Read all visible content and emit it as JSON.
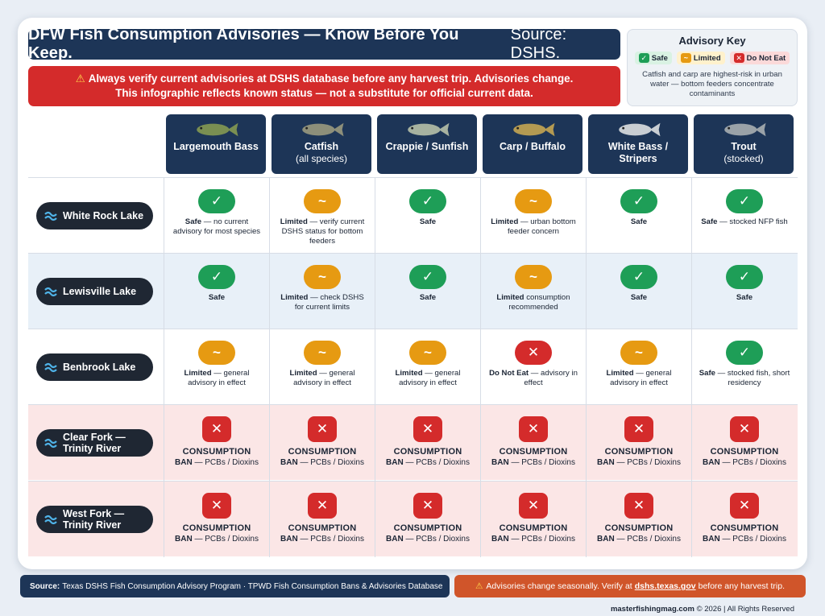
{
  "title": {
    "main": "DFW Fish Consumption Advisories — Know Before You Keep.",
    "source": "Source: DSHS."
  },
  "warning": {
    "line1": "Always verify current advisories at DSHS database before any harvest trip. Advisories change.",
    "line2": "This infographic reflects known status — not a substitute for official current data."
  },
  "key": {
    "title": "Advisory Key",
    "safe": "Safe",
    "limited": "Limited",
    "do_not_eat": "Do Not Eat",
    "note": "Catfish and carp are highest-risk in urban water — bottom feeders concentrate contaminants"
  },
  "species": [
    {
      "name": "Largemouth Bass",
      "sub": ""
    },
    {
      "name": "Catfish",
      "sub": "(all species)"
    },
    {
      "name": "Crappie / Sunfish",
      "sub": ""
    },
    {
      "name": "Carp / Buffalo",
      "sub": ""
    },
    {
      "name": "White Bass / Stripers",
      "sub": ""
    },
    {
      "name": "Trout",
      "sub": "(stocked)"
    }
  ],
  "lakes": [
    {
      "name": "White Rock Lake",
      "cells": [
        {
          "status": "safe",
          "label": "Safe",
          "detail": " — no current advisory for most species"
        },
        {
          "status": "limited",
          "label": "Limited",
          "detail": " — verify current DSHS status for bottom feeders"
        },
        {
          "status": "safe",
          "label": "Safe",
          "detail": ""
        },
        {
          "status": "limited",
          "label": "Limited",
          "detail": " — urban bottom feeder concern"
        },
        {
          "status": "safe",
          "label": "Safe",
          "detail": ""
        },
        {
          "status": "safe",
          "label": "Safe",
          "detail": " — stocked NFP fish"
        }
      ]
    },
    {
      "name": "Lewisville Lake",
      "cells": [
        {
          "status": "safe",
          "label": "Safe",
          "detail": ""
        },
        {
          "status": "limited",
          "label": "Limited",
          "detail": " — check DSHS for current limits"
        },
        {
          "status": "safe",
          "label": "Safe",
          "detail": ""
        },
        {
          "status": "limited",
          "label": "Limited",
          "detail": " consumption recommended"
        },
        {
          "status": "safe",
          "label": "Safe",
          "detail": ""
        },
        {
          "status": "safe",
          "label": "Safe",
          "detail": ""
        }
      ]
    },
    {
      "name": "Benbrook Lake",
      "cells": [
        {
          "status": "limited",
          "label": "Limited",
          "detail": " — general advisory in effect"
        },
        {
          "status": "limited",
          "label": "Limited",
          "detail": " — general advisory in effect"
        },
        {
          "status": "limited",
          "label": "Limited",
          "detail": " — general advisory in effect"
        },
        {
          "status": "dne",
          "label": "Do Not Eat",
          "detail": " — advisory in effect"
        },
        {
          "status": "limited",
          "label": "Limited",
          "detail": " — general advisory in effect"
        },
        {
          "status": "safe",
          "label": "Safe",
          "detail": " — stocked fish, short residency"
        }
      ]
    },
    {
      "name": "Clear Fork — Trinity River",
      "cells": [
        {
          "status": "ban",
          "label": "CONSUMPTION",
          "detail": "BAN",
          "sub": " — PCBs / Dioxins"
        },
        {
          "status": "ban",
          "label": "CONSUMPTION",
          "detail": "BAN",
          "sub": " — PCBs / Dioxins"
        },
        {
          "status": "ban",
          "label": "CONSUMPTION",
          "detail": "BAN",
          "sub": " — PCBs / Dioxins"
        },
        {
          "status": "ban",
          "label": "CONSUMPTION",
          "detail": "BAN",
          "sub": " — PCBs / Dioxins"
        },
        {
          "status": "ban",
          "label": "CONSUMPTION",
          "detail": "BAN",
          "sub": " — PCBs / Dioxins"
        },
        {
          "status": "ban",
          "label": "CONSUMPTION",
          "detail": "BAN",
          "sub": " — PCBs / Dioxins"
        }
      ]
    },
    {
      "name": "West Fork — Trinity River",
      "cells": [
        {
          "status": "ban",
          "label": "CONSUMPTION",
          "detail": "BAN",
          "sub": " — PCBs / Dioxins"
        },
        {
          "status": "ban",
          "label": "CONSUMPTION",
          "detail": "BAN",
          "sub": " — PCBs / Dioxins"
        },
        {
          "status": "ban",
          "label": "CONSUMPTION",
          "detail": "BAN",
          "sub": " — PCBs / Dioxins"
        },
        {
          "status": "ban",
          "label": "CONSUMPTION",
          "detail": "BAN",
          "sub": " — PCBs / Dioxins"
        },
        {
          "status": "ban",
          "label": "CONSUMPTION",
          "detail": "BAN",
          "sub": " — PCBs / Dioxins"
        },
        {
          "status": "ban",
          "label": "CONSUMPTION",
          "detail": "BAN",
          "sub": " — PCBs / Dioxins"
        }
      ]
    }
  ],
  "footer": {
    "source_label": "Source:",
    "source_text": "Texas DSHS Fish Consumption Advisory Program · TPWD Fish Consumption Bans & Advisories Database",
    "warn_pre": "Advisories change seasonally. Verify at",
    "warn_link": "dshs.texas.gov",
    "warn_post": "before any harvest trip.",
    "credit_site": "masterfishingmag.com",
    "credit_rest": "© 2026 | All Rights Reserved"
  },
  "colors": {
    "navy": "#1d3557",
    "safe": "#1e9e57",
    "limited": "#e69a12",
    "danger": "#d42b2b"
  },
  "icons": {
    "safe": "check-icon",
    "limited": "tilde-icon",
    "dne": "x-icon",
    "warning": "warning-triangle-icon"
  }
}
